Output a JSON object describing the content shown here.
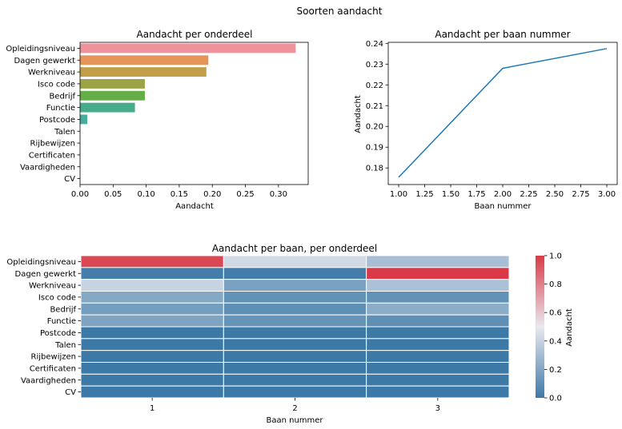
{
  "figure": {
    "suptitle": "Soorten aandacht"
  },
  "chart_data": [
    {
      "type": "bar",
      "orientation": "horizontal",
      "title": "Aandacht per onderdeel",
      "xlabel": "Aandacht",
      "ylabel": "",
      "xlim": [
        0,
        0.345
      ],
      "xticks": [
        "0.00",
        "0.05",
        "0.10",
        "0.15",
        "0.20",
        "0.25",
        "0.30"
      ],
      "categories": [
        "Opleidingsniveau",
        "Dagen gewerkt",
        "Werkniveau",
        "Isco code",
        "Bedrijf",
        "Functie",
        "Postcode",
        "Talen",
        "Rijbewijzen",
        "Certificaten",
        "Vaardigheden",
        "CV"
      ],
      "values": [
        0.326,
        0.194,
        0.191,
        0.098,
        0.098,
        0.083,
        0.011,
        0.0,
        0.0,
        0.0,
        0.0,
        0.0
      ],
      "colors": [
        "#f0929c",
        "#e6955a",
        "#c29e48",
        "#9ba344",
        "#64ad47",
        "#45ab8a",
        "#48ab9b",
        "#4caaa9",
        "#4daab7",
        "#5aa4d6",
        "#9a9ce8",
        "#d78fe8"
      ],
      "grid": false
    },
    {
      "type": "line",
      "title": "Aandacht per baan nummer",
      "xlabel": "Baan nummer",
      "ylabel": "Aandacht",
      "x": [
        1,
        2,
        3
      ],
      "y": [
        0.1755,
        0.228,
        0.2375
      ],
      "xlim": [
        0.9,
        3.1
      ],
      "ylim": [
        0.172,
        0.2405
      ],
      "xticks": [
        "1.00",
        "1.25",
        "1.50",
        "1.75",
        "2.00",
        "2.25",
        "2.50",
        "2.75",
        "3.00"
      ],
      "yticks": [
        "0.18",
        "0.19",
        "0.20",
        "0.21",
        "0.22",
        "0.23",
        "0.24"
      ],
      "color": "#1f77b4",
      "grid": false
    },
    {
      "type": "heatmap",
      "title": "Aandacht per baan, per onderdeel",
      "xlabel": "Baan nummer",
      "ylabel": "",
      "x": [
        "1",
        "2",
        "3"
      ],
      "y": [
        "Opleidingsniveau",
        "Dagen gewerkt",
        "Werkniveau",
        "Isco code",
        "Bedrijf",
        "Functie",
        "Postcode",
        "Talen",
        "Rijbewijzen",
        "Certificaten",
        "Vaardigheden",
        "CV"
      ],
      "values": [
        [
          0.96,
          0.43,
          0.31
        ],
        [
          0.02,
          0.02,
          1.0
        ],
        [
          0.4,
          0.18,
          0.32
        ],
        [
          0.21,
          0.11,
          0.11
        ],
        [
          0.16,
          0.1,
          0.23
        ],
        [
          0.19,
          0.12,
          0.1
        ],
        [
          0.0,
          0.0,
          0.0
        ],
        [
          0.0,
          0.0,
          0.0
        ],
        [
          0.0,
          0.0,
          0.0
        ],
        [
          0.0,
          0.0,
          0.0
        ],
        [
          0.0,
          0.0,
          0.0
        ],
        [
          0.0,
          0.0,
          0.0
        ]
      ],
      "vmin": 0,
      "vmax": 1,
      "colorbar_label": "Aandacht",
      "colorbar_ticks": [
        "0.0",
        "0.2",
        "0.4",
        "0.6",
        "0.8",
        "1.0"
      ],
      "colormap_stops": [
        "#3d79a7",
        "#e9e9ef",
        "#da3a47"
      ]
    }
  ]
}
